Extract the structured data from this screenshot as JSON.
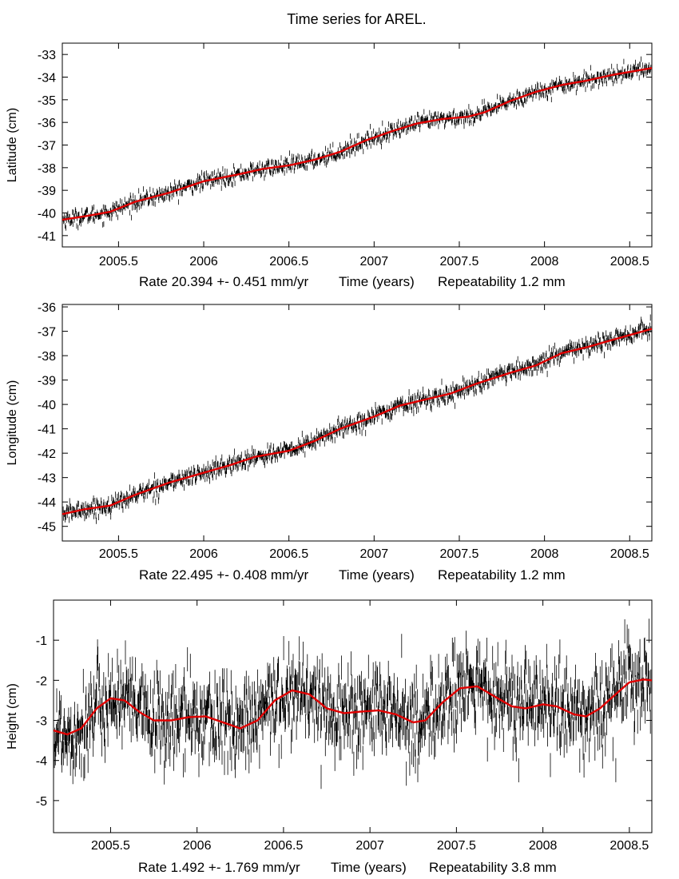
{
  "page": {
    "title": "Time series for AREL."
  },
  "chart_data": [
    {
      "type": "line",
      "name": "latitude",
      "ylabel": "Latitude (cm)",
      "x_range": [
        2005.17,
        2008.63
      ],
      "ylim": [
        -41.5,
        -32.5
      ],
      "yticks": [
        -33,
        -34,
        -35,
        -36,
        -37,
        -38,
        -39,
        -40,
        -41
      ],
      "xticks": [
        2005.5,
        2006,
        2006.5,
        2007,
        2007.5,
        2008,
        2008.5
      ],
      "xtick_labels": [
        "2005.5",
        "2006",
        "2006.5",
        "2007",
        "2007.5",
        "2008",
        "2008.5"
      ],
      "caption": {
        "rate": "Rate 20.394 +- 0.451 mm/yr",
        "time": "Time (years)",
        "repeatability": "Repeatability 1.2 mm"
      },
      "series": [
        {
          "name": "model fit",
          "color": "#e00000",
          "points": [
            [
              2005.17,
              -40.3
            ],
            [
              2005.3,
              -40.15
            ],
            [
              2005.45,
              -39.95
            ],
            [
              2005.6,
              -39.5
            ],
            [
              2005.8,
              -39.1
            ],
            [
              2006.0,
              -38.6
            ],
            [
              2006.2,
              -38.3
            ],
            [
              2006.35,
              -38.05
            ],
            [
              2006.5,
              -37.9
            ],
            [
              2006.65,
              -37.65
            ],
            [
              2006.8,
              -37.3
            ],
            [
              2006.95,
              -36.8
            ],
            [
              2007.1,
              -36.4
            ],
            [
              2007.25,
              -36.05
            ],
            [
              2007.4,
              -35.85
            ],
            [
              2007.55,
              -35.75
            ],
            [
              2007.65,
              -35.55
            ],
            [
              2007.8,
              -35.05
            ],
            [
              2007.95,
              -34.65
            ],
            [
              2008.1,
              -34.35
            ],
            [
              2008.25,
              -34.15
            ],
            [
              2008.4,
              -33.9
            ],
            [
              2008.63,
              -33.6
            ]
          ]
        },
        {
          "name": "observations",
          "color": "#000000",
          "noise_cm": 0.18,
          "error_bar_cm": 0.12
        }
      ]
    },
    {
      "type": "line",
      "name": "longitude",
      "ylabel": "Longitude (cm)",
      "x_range": [
        2005.17,
        2008.63
      ],
      "ylim": [
        -45.6,
        -35.9
      ],
      "yticks": [
        -36,
        -37,
        -38,
        -39,
        -40,
        -41,
        -42,
        -43,
        -44,
        -45
      ],
      "xticks": [
        2005.5,
        2006,
        2006.5,
        2007,
        2007.5,
        2008,
        2008.5
      ],
      "xtick_labels": [
        "2005.5",
        "2006",
        "2006.5",
        "2007",
        "2007.5",
        "2008",
        "2008.5"
      ],
      "caption": {
        "rate": "Rate 22.495 +- 0.408 mm/yr",
        "time": "Time (years)",
        "repeatability": "Repeatability 1.2 mm"
      },
      "series": [
        {
          "name": "model fit",
          "color": "#e00000",
          "points": [
            [
              2005.17,
              -44.5
            ],
            [
              2005.3,
              -44.3
            ],
            [
              2005.45,
              -44.15
            ],
            [
              2005.6,
              -43.7
            ],
            [
              2005.8,
              -43.2
            ],
            [
              2006.0,
              -42.8
            ],
            [
              2006.15,
              -42.5
            ],
            [
              2006.3,
              -42.15
            ],
            [
              2006.5,
              -41.9
            ],
            [
              2006.65,
              -41.5
            ],
            [
              2006.8,
              -41.0
            ],
            [
              2007.0,
              -40.5
            ],
            [
              2007.15,
              -40.05
            ],
            [
              2007.3,
              -39.8
            ],
            [
              2007.45,
              -39.55
            ],
            [
              2007.6,
              -39.15
            ],
            [
              2007.8,
              -38.7
            ],
            [
              2007.95,
              -38.4
            ],
            [
              2008.1,
              -37.9
            ],
            [
              2008.25,
              -37.65
            ],
            [
              2008.4,
              -37.35
            ],
            [
              2008.63,
              -36.9
            ]
          ]
        },
        {
          "name": "observations",
          "color": "#000000",
          "noise_cm": 0.18,
          "error_bar_cm": 0.13
        }
      ]
    },
    {
      "type": "line",
      "name": "height",
      "ylabel": "Height (cm)",
      "x_range": [
        2005.17,
        2008.63
      ],
      "ylim": [
        -5.8,
        0.0
      ],
      "yticks": [
        -1,
        -2,
        -3,
        -4,
        -5
      ],
      "xticks": [
        2005.5,
        2006,
        2006.5,
        2007,
        2007.5,
        2008,
        2008.5
      ],
      "xtick_labels": [
        "2005.5",
        "2006",
        "2006.5",
        "2007",
        "2007.5",
        "2008",
        "2008.5"
      ],
      "caption": {
        "rate": "Rate 1.492 +- 1.769 mm/yr",
        "time": "Time (years)",
        "repeatability": "Repeatability 3.8 mm"
      },
      "series": [
        {
          "name": "model fit",
          "color": "#e00000",
          "points": [
            [
              2005.17,
              -3.25
            ],
            [
              2005.25,
              -3.35
            ],
            [
              2005.33,
              -3.2
            ],
            [
              2005.42,
              -2.7
            ],
            [
              2005.5,
              -2.45
            ],
            [
              2005.58,
              -2.5
            ],
            [
              2005.67,
              -2.8
            ],
            [
              2005.75,
              -3.0
            ],
            [
              2005.85,
              -3.0
            ],
            [
              2005.95,
              -2.92
            ],
            [
              2006.05,
              -2.9
            ],
            [
              2006.15,
              -3.05
            ],
            [
              2006.25,
              -3.2
            ],
            [
              2006.35,
              -3.0
            ],
            [
              2006.45,
              -2.5
            ],
            [
              2006.55,
              -2.25
            ],
            [
              2006.65,
              -2.35
            ],
            [
              2006.75,
              -2.7
            ],
            [
              2006.85,
              -2.82
            ],
            [
              2006.95,
              -2.78
            ],
            [
              2007.05,
              -2.75
            ],
            [
              2007.15,
              -2.85
            ],
            [
              2007.25,
              -3.05
            ],
            [
              2007.32,
              -3.0
            ],
            [
              2007.42,
              -2.55
            ],
            [
              2007.52,
              -2.2
            ],
            [
              2007.62,
              -2.15
            ],
            [
              2007.72,
              -2.4
            ],
            [
              2007.82,
              -2.65
            ],
            [
              2007.9,
              -2.7
            ],
            [
              2008.0,
              -2.6
            ],
            [
              2008.08,
              -2.65
            ],
            [
              2008.18,
              -2.85
            ],
            [
              2008.25,
              -2.9
            ],
            [
              2008.33,
              -2.7
            ],
            [
              2008.42,
              -2.35
            ],
            [
              2008.5,
              -2.05
            ],
            [
              2008.58,
              -1.98
            ],
            [
              2008.63,
              -2.0
            ]
          ]
        },
        {
          "name": "observations",
          "color": "#000000",
          "noise_cm": 0.55,
          "error_bar_cm": 0.3
        }
      ]
    }
  ]
}
